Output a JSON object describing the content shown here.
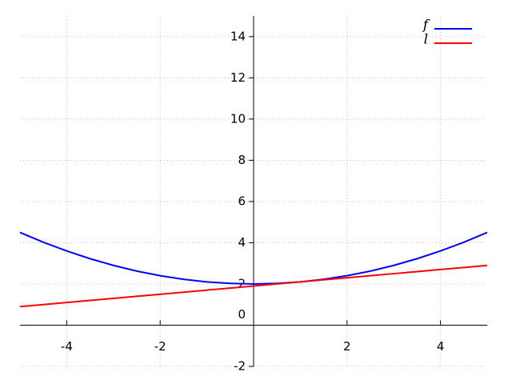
{
  "chart_data": {
    "type": "line",
    "x": [
      -5,
      -4.5,
      -4,
      -3.5,
      -3,
      -2.5,
      -2,
      -1.5,
      -1,
      -0.5,
      0,
      0.5,
      1,
      1.5,
      2,
      2.5,
      3,
      3.5,
      4,
      4.5,
      5
    ],
    "series": [
      {
        "name": "f",
        "color": "#0000ff",
        "values": [
          4.5,
          4.025,
          3.6,
          3.225,
          2.9,
          2.625,
          2.4,
          2.225,
          2.1,
          2.025,
          2,
          2.025,
          2.1,
          2.225,
          2.4,
          2.625,
          2.9,
          3.225,
          3.6,
          4.025,
          4.5
        ]
      },
      {
        "name": "l",
        "color": "#ff0000",
        "values": [
          0.9,
          1.0,
          1.1,
          1.2,
          1.3,
          1.4,
          1.5,
          1.6,
          1.7,
          1.8,
          1.9,
          2.0,
          2.1,
          2.2,
          2.3,
          2.4,
          2.5,
          2.6,
          2.7,
          2.8,
          2.9
        ]
      }
    ],
    "xlim": [
      -5,
      5
    ],
    "ylim": [
      -2,
      15
    ],
    "xticks": [
      -4,
      -2,
      2,
      4
    ],
    "yticks": [
      -2,
      0,
      2,
      4,
      6,
      8,
      10,
      12,
      14
    ],
    "grid": true,
    "legend": "upper right"
  }
}
